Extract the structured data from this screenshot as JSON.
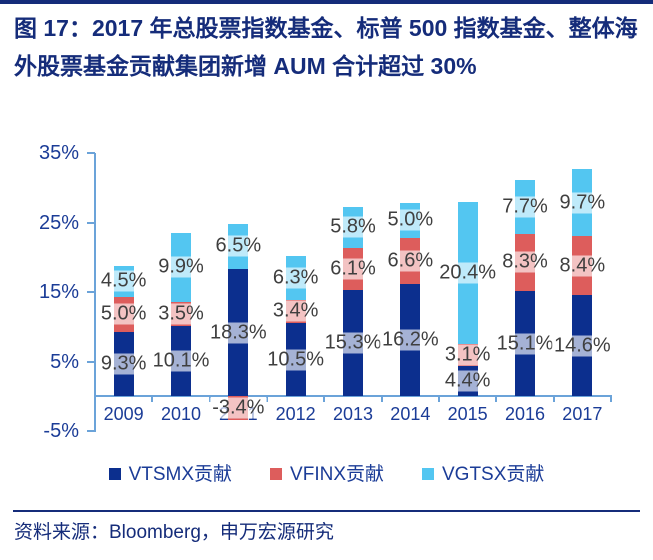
{
  "figure": {
    "title": "图 17：2017 年总股票指数基金、标普 500 指数基金、整体海外股票基金贡献集团新增 AUM 合计超过 30%",
    "source": "资料来源：Bloomberg，申万宏源研究"
  },
  "colors": {
    "title_navy": "#152c7a",
    "axis_text_blue": "#1b3c97",
    "axis_line_blue": "#6ba3d9",
    "data_label_gray": "#3f3f3f",
    "bar_dark_blue": "#0c2f8e",
    "bar_red": "#dd5d5c",
    "bar_light_blue": "#53c6f1"
  },
  "chart_data": {
    "type": "bar",
    "stacked": true,
    "title": "",
    "xlabel": "",
    "ylabel": "",
    "categories": [
      "2009",
      "2010",
      "2011",
      "2012",
      "2013",
      "2014",
      "2015",
      "2016",
      "2017"
    ],
    "series": [
      {
        "name": "VTSMX贡献",
        "color": "#0c2f8e",
        "values": [
          9.3,
          10.1,
          18.3,
          10.5,
          15.3,
          16.2,
          4.4,
          15.1,
          14.6
        ]
      },
      {
        "name": "VFINX贡献",
        "color": "#dd5d5c",
        "values": [
          5.0,
          3.5,
          -3.4,
          3.4,
          6.1,
          6.6,
          3.1,
          8.3,
          8.4
        ]
      },
      {
        "name": "VGTSX贡献",
        "color": "#53c6f1",
        "values": [
          4.5,
          9.9,
          6.5,
          6.3,
          5.8,
          5.0,
          20.4,
          7.7,
          9.7
        ]
      }
    ],
    "data_labels_format": "one_decimal_percent",
    "value_label_suffix": "%",
    "y_ticks": [
      {
        "label": "35%",
        "value": 35
      },
      {
        "label": "25%",
        "value": 25
      },
      {
        "label": "15%",
        "value": 15
      },
      {
        "label": "5%",
        "value": 5
      },
      {
        "label": "-5%",
        "value": -5
      }
    ],
    "ylim": [
      -5,
      35
    ],
    "grid": false,
    "legend_position": "bottom"
  }
}
